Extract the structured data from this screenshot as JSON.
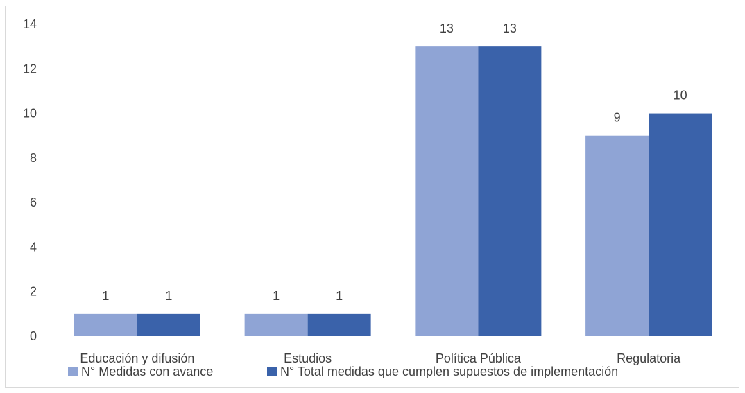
{
  "chart_data": {
    "type": "bar",
    "categories": [
      "Educación y difusión",
      "Estudios",
      "Política Pública",
      "Regulatoria"
    ],
    "series": [
      {
        "name": "N° Medidas con avance",
        "values": [
          1,
          1,
          13,
          9
        ],
        "color": "#8FA4D5"
      },
      {
        "name": "N° Total medidas que cumplen supuestos de implementación",
        "values": [
          1,
          1,
          13,
          10
        ],
        "color": "#3A62AA"
      }
    ],
    "yticks": [
      0,
      2,
      4,
      6,
      8,
      10,
      12,
      14
    ],
    "ylim": [
      0,
      14
    ],
    "grid": false,
    "legend": "bottom",
    "data_labels": true
  }
}
